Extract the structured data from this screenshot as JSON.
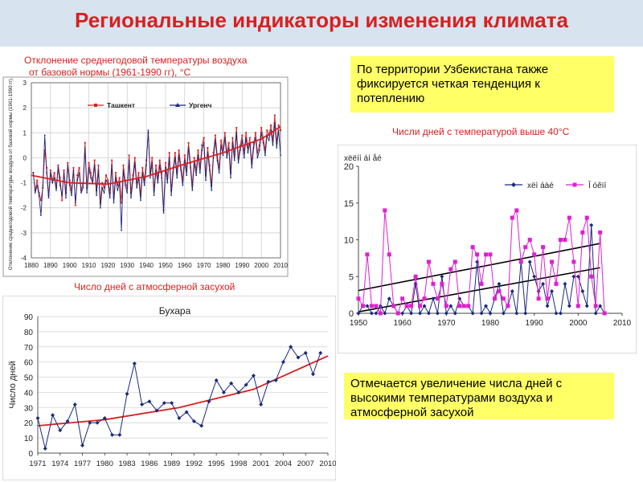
{
  "title": "Региональные индикаторы изменения климата",
  "caption_temp": [
    "Отклонение среднегодовой температуры воздуха",
    "от базовой нормы (1961-1990 гг), °С"
  ],
  "caption_hot_days": "Числи дней с  температурой  выше 40°С",
  "caption_drought": "Число дней с атмосферной засухой",
  "note_top": [
    "По территории Узбекистана также",
    "фиксируется четкая   тенденция к",
    "потеплению"
  ],
  "note_bottom": [
    "Отмечается увеличение числа дней с",
    "высокими температурами воздуха и",
    "атмосферной засухой"
  ],
  "colors": {
    "title": "#d82020",
    "note_bg": "#ffff66",
    "title_bg": "#d7e4ef",
    "red": "#d82020",
    "navy": "#1a2a7a",
    "magenta": "#e020d0",
    "trend": "#d82020"
  },
  "chart_data": [
    {
      "type": "line",
      "ylabel": "Отклонение среднегодовой температуры воздуха от базовой нормы (1961-1990 гг), °С",
      "xlim": [
        1880,
        2010
      ],
      "ylim": [
        -4,
        3
      ],
      "x_ticks": [
        "1880",
        "1890",
        "1900",
        "1910",
        "1920",
        "1930",
        "1940",
        "1950",
        "1960",
        "1970",
        "1980",
        "1990",
        "2000",
        "2010"
      ],
      "y_ticks": [
        "-4",
        "-3",
        "-2",
        "-1",
        "0",
        "1",
        "2",
        "3"
      ],
      "grid": true,
      "legend": "top",
      "series": [
        {
          "name": "Ташкент",
          "color": "#d82020",
          "x_start": 1881,
          "values": [
            -0.6,
            -1.3,
            -0.9,
            -1.4,
            -1.7,
            -1.2,
            0.3,
            -0.4,
            -1.5,
            -0.5,
            -0.9,
            -0.6,
            -1.2,
            -0.3,
            -0.8,
            -1.7,
            -0.5,
            -1.4,
            -0.2,
            -0.9,
            -1.3,
            -0.4,
            -1.9,
            -0.7,
            -0.4,
            -1.3,
            -1.0,
            0.6,
            -1.2,
            -0.2,
            -0.6,
            -0.9,
            -0.1,
            -1.3,
            -0.3,
            -1.8,
            -1.0,
            -1.2,
            -0.7,
            -0.9,
            -1.4,
            -0.1,
            -1.6,
            -0.6,
            -1.1,
            -0.8,
            -1.8,
            -0.3,
            -0.9,
            -1.2,
            0.1,
            -1.4,
            -0.7,
            0.0,
            -1.0,
            -0.6,
            -1.5,
            -0.4,
            -0.9,
            -0.1,
            1.0,
            -0.6,
            0.0,
            -1.3,
            -0.3,
            -0.8,
            -0.1,
            -0.6,
            -2.1,
            -0.2,
            -0.8,
            0.2,
            -1.3,
            -0.4,
            0.2,
            -0.6,
            0.3,
            -0.3,
            -0.9,
            0.1,
            -0.5,
            0.6,
            -0.2,
            -1.1,
            0.0,
            -0.5,
            0.3,
            -0.4,
            0.5,
            0.8,
            -0.7,
            0.4,
            -0.3,
            -1.1,
            0.2,
            0.9,
            0.1,
            -0.4,
            0.7,
            0.3,
            1.0,
            0.2,
            0.6,
            -0.6,
            0.8,
            0.1,
            1.2,
            0.0,
            0.5,
            0.9,
            0.2,
            1.0,
            0.4,
            0.8,
            -0.2,
            0.6,
            1.0,
            0.2,
            0.5,
            1.2,
            0.8,
            0.3,
            1.1,
            0.9,
            1.3,
            0.7,
            1.7,
            0.6,
            1.3,
            1.1
          ]
        },
        {
          "name": "Ургенч",
          "color": "#1a2a7a",
          "x_start": 1881,
          "values": [
            -0.6,
            -1.4,
            -1.1,
            -1.5,
            -2.3,
            -1.1,
            0.9,
            -0.6,
            -1.6,
            -0.6,
            -1.0,
            -0.8,
            -1.3,
            -0.4,
            -1.1,
            -1.5,
            -0.6,
            -1.6,
            -0.3,
            -1.1,
            -1.5,
            -0.5,
            -1.8,
            -0.9,
            -0.6,
            -1.4,
            -1.2,
            0.4,
            -1.4,
            -0.4,
            -0.8,
            -1.0,
            -0.3,
            -1.5,
            -0.5,
            -2.0,
            -1.2,
            -1.4,
            -0.9,
            -1.0,
            -1.6,
            -0.3,
            -1.8,
            -0.8,
            -1.3,
            -1.0,
            -2.9,
            -0.5,
            -1.1,
            -1.4,
            -0.1,
            -1.6,
            -0.9,
            -0.2,
            -1.2,
            -0.8,
            -1.7,
            -0.6,
            -1.1,
            -0.3,
            1.1,
            -0.8,
            -0.2,
            -1.5,
            -0.5,
            -1.0,
            -0.3,
            -0.8,
            -2.2,
            -0.4,
            -1.0,
            0.0,
            -1.5,
            -0.6,
            0.0,
            -0.8,
            0.1,
            -0.5,
            -1.1,
            -0.1,
            -0.7,
            0.4,
            -0.4,
            -1.3,
            -0.2,
            -0.7,
            0.1,
            -0.6,
            0.3,
            0.6,
            -0.9,
            0.2,
            -0.5,
            -1.3,
            0.0,
            0.7,
            -0.1,
            -0.6,
            0.5,
            0.1,
            0.8,
            0.0,
            0.4,
            -0.8,
            0.6,
            -0.1,
            1.0,
            -0.2,
            0.3,
            0.7,
            0.0,
            0.8,
            0.2,
            0.6,
            -0.4,
            0.4,
            0.8,
            0.0,
            0.3,
            1.0,
            0.6,
            0.1,
            0.9,
            0.7,
            1.1,
            0.5,
            1.4,
            0.4,
            1.1,
            0.1
          ]
        }
      ],
      "trend": {
        "color": "#d82020",
        "points": [
          [
            1880,
            -0.7
          ],
          [
            1900,
            -1.0
          ],
          [
            1920,
            -1.05
          ],
          [
            1940,
            -0.75
          ],
          [
            1960,
            -0.25
          ],
          [
            1980,
            0.2
          ],
          [
            2000,
            0.75
          ],
          [
            2010,
            1.25
          ]
        ]
      }
    },
    {
      "type": "line",
      "xlim": [
        1950,
        2010
      ],
      "ylim": [
        0,
        20
      ],
      "x_ticks": [
        "1950",
        "1960",
        "1970",
        "1980",
        "1990",
        "2000",
        "2010"
      ],
      "y_ticks": [
        "0",
        "5",
        "10",
        "15",
        "20"
      ],
      "grid": false,
      "legend": "top-right",
      "series": [
        {
          "name": "xëì áàé",
          "color": "#1a2a7a",
          "x_start": 1950,
          "values": [
            0,
            1,
            1,
            0,
            0,
            1,
            0,
            2,
            1,
            0,
            0,
            1,
            0,
            4,
            0,
            1,
            0,
            2,
            0,
            5,
            0,
            1,
            0,
            2,
            1,
            1,
            0,
            7,
            0,
            1,
            0,
            2,
            4,
            0,
            1,
            3,
            0,
            7,
            0,
            7,
            5,
            3,
            4,
            1,
            3,
            0,
            0,
            4,
            1,
            5,
            5,
            3,
            1,
            12,
            0,
            1,
            0
          ]
        },
        {
          "name": "Î óêïí",
          "color": "#e020d0",
          "x_start": 1950,
          "values": [
            2,
            1,
            8,
            1,
            1,
            0,
            14,
            8,
            1,
            0,
            2,
            1,
            1,
            5,
            1,
            2,
            7,
            4,
            2,
            4,
            1,
            6,
            7,
            1,
            1,
            1,
            9,
            8,
            4,
            8,
            8,
            2,
            3,
            2,
            1,
            13,
            14,
            7,
            9,
            10,
            8,
            2,
            9,
            2,
            7,
            4,
            10,
            10,
            13,
            7,
            1,
            11,
            13,
            5,
            1,
            11,
            0
          ]
        }
      ],
      "trend_lines": [
        {
          "from": [
            1950,
            3.1
          ],
          "to": [
            2005,
            9.5
          ]
        },
        {
          "from": [
            1950,
            0.2
          ],
          "to": [
            2005,
            6.2
          ]
        }
      ],
      "top_left_label": "xëëíí áí åé"
    },
    {
      "type": "line",
      "title": "Бухара",
      "ylabel": "Число дней",
      "xlim": [
        1971,
        2010
      ],
      "ylim": [
        0,
        90
      ],
      "x_ticks": [
        "1971",
        "1974",
        "1977",
        "1980",
        "1983",
        "1986",
        "1989",
        "1992",
        "1995",
        "1998",
        "2001",
        "2004",
        "2007",
        "2010"
      ],
      "y_ticks": [
        "0",
        "10",
        "20",
        "30",
        "40",
        "50",
        "60",
        "70",
        "80",
        "90"
      ],
      "grid": true,
      "series": [
        {
          "name": "",
          "color": "#1a2a7a",
          "x_start": 1971,
          "values": [
            23,
            3,
            25,
            15,
            21,
            32,
            5,
            20,
            20,
            23,
            12,
            12,
            39,
            59,
            32,
            34,
            28,
            33,
            33,
            23,
            27,
            21,
            18,
            34,
            48,
            40,
            46,
            40,
            45,
            51,
            32,
            47,
            48,
            60,
            70,
            63,
            66,
            52,
            66
          ]
        }
      ],
      "trend": {
        "color": "#d82020",
        "points": [
          [
            1971,
            18
          ],
          [
            1980,
            22
          ],
          [
            1990,
            30
          ],
          [
            2000,
            42
          ],
          [
            2010,
            64
          ]
        ]
      }
    }
  ]
}
